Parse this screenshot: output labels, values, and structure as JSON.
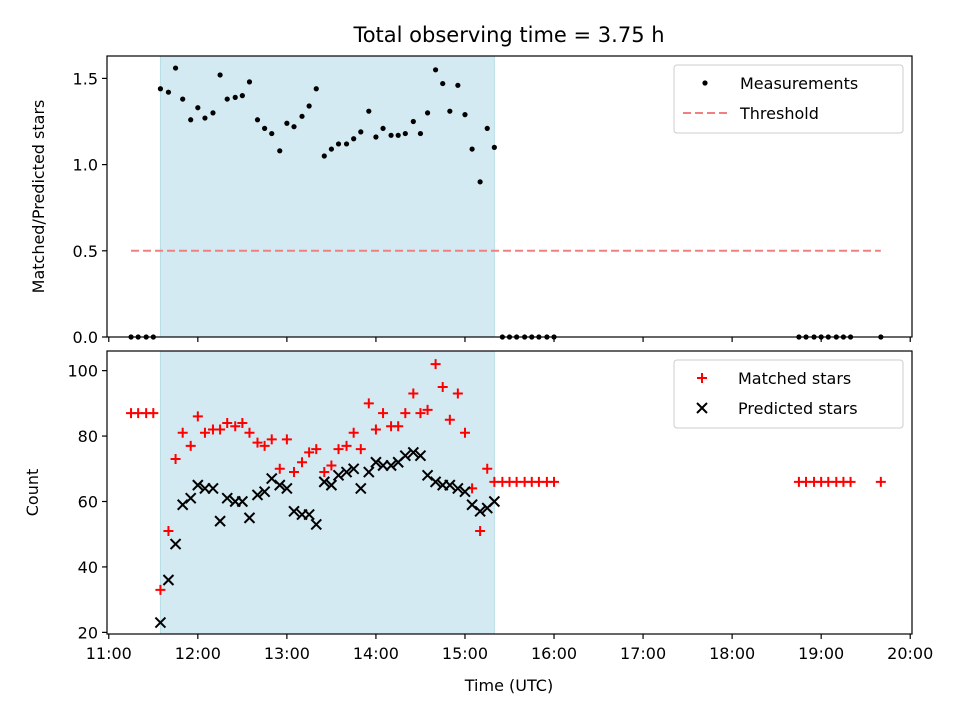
{
  "chart_data": {
    "title": "Total observing time = 3.75 h",
    "xlabel": "Time (UTC)",
    "xticks": [
      "11:00",
      "12:00",
      "13:00",
      "14:00",
      "15:00",
      "16:00",
      "17:00",
      "18:00",
      "19:00",
      "20:00"
    ],
    "xlim_hours": [
      10.98,
      20.02
    ],
    "observing_window_hours": [
      11.58,
      15.33
    ],
    "observing_window_color": "#d3eaf2",
    "panels": [
      {
        "type": "scatter",
        "ylabel": "Matched/Predicted stars",
        "ylim": [
          0,
          1.63
        ],
        "yticks": [
          "0.0",
          "0.5",
          "1.0",
          "1.5"
        ],
        "legend_position": "upper right",
        "threshold": {
          "name": "Threshold",
          "value": 0.5,
          "x_range": [
            11.25,
            19.67
          ],
          "color": "#f08080"
        },
        "series": [
          {
            "name": "Measurements",
            "color": "#000000",
            "x": [
              11.25,
              11.33,
              11.42,
              11.5,
              11.58,
              11.67,
              11.75,
              11.83,
              11.92,
              12.0,
              12.08,
              12.17,
              12.25,
              12.33,
              12.42,
              12.5,
              12.58,
              12.67,
              12.75,
              12.83,
              12.92,
              13.0,
              13.08,
              13.17,
              13.25,
              13.33,
              13.42,
              13.5,
              13.58,
              13.67,
              13.75,
              13.83,
              13.92,
              14.0,
              14.08,
              14.17,
              14.25,
              14.33,
              14.42,
              14.5,
              14.58,
              14.67,
              14.75,
              14.83,
              14.92,
              15.0,
              15.08,
              15.17,
              15.25,
              15.33,
              15.42,
              15.5,
              15.58,
              15.67,
              15.75,
              15.83,
              15.92,
              16.0,
              18.75,
              18.83,
              18.92,
              19.0,
              19.08,
              19.17,
              19.25,
              19.33,
              19.67
            ],
            "y": [
              0,
              0,
              0,
              0,
              1.44,
              1.42,
              1.56,
              1.38,
              1.26,
              1.33,
              1.27,
              1.3,
              1.52,
              1.38,
              1.39,
              1.4,
              1.48,
              1.26,
              1.21,
              1.18,
              1.08,
              1.24,
              1.22,
              1.28,
              1.34,
              1.44,
              1.05,
              1.09,
              1.12,
              1.12,
              1.15,
              1.19,
              1.31,
              1.16,
              1.21,
              1.17,
              1.17,
              1.18,
              1.25,
              1.18,
              1.3,
              1.55,
              1.47,
              1.31,
              1.46,
              1.29,
              1.09,
              0.9,
              1.21,
              1.1,
              0,
              0,
              0,
              0,
              0,
              0,
              0,
              0,
              0,
              0,
              0,
              0,
              0,
              0,
              0,
              0,
              0
            ]
          }
        ]
      },
      {
        "type": "scatter",
        "ylabel": "Count",
        "ylim": [
          19.5,
          106
        ],
        "yticks": [
          "20",
          "40",
          "60",
          "80",
          "100"
        ],
        "legend_position": "upper right",
        "series": [
          {
            "name": "Matched stars",
            "color": "#ff0000",
            "marker": "+",
            "x": [
              11.25,
              11.33,
              11.42,
              11.5,
              11.58,
              11.67,
              11.75,
              11.83,
              11.92,
              12.0,
              12.08,
              12.17,
              12.25,
              12.33,
              12.42,
              12.5,
              12.58,
              12.67,
              12.75,
              12.83,
              12.92,
              13.0,
              13.08,
              13.17,
              13.25,
              13.33,
              13.42,
              13.5,
              13.58,
              13.67,
              13.75,
              13.83,
              13.92,
              14.0,
              14.08,
              14.17,
              14.25,
              14.33,
              14.42,
              14.5,
              14.58,
              14.67,
              14.75,
              14.83,
              14.92,
              15.0,
              15.08,
              15.17,
              15.25,
              15.33,
              15.42,
              15.5,
              15.58,
              15.67,
              15.75,
              15.83,
              15.92,
              16.0,
              18.75,
              18.83,
              18.92,
              19.0,
              19.08,
              19.17,
              19.25,
              19.33,
              19.67
            ],
            "y": [
              87,
              87,
              87,
              87,
              33,
              51,
              73,
              81,
              77,
              86,
              81,
              82,
              82,
              84,
              83,
              84,
              81,
              78,
              77,
              79,
              70,
              79,
              69,
              72,
              75,
              76,
              69,
              71,
              76,
              77,
              81,
              76,
              90,
              82,
              87,
              83,
              83,
              87,
              93,
              87,
              88,
              102,
              95,
              85,
              93,
              81,
              64,
              51,
              70,
              66,
              66,
              66,
              66,
              66,
              66,
              66,
              66,
              66,
              66,
              66,
              66,
              66,
              66,
              66,
              66,
              66,
              66
            ]
          },
          {
            "name": "Predicted stars",
            "color": "#000000",
            "marker": "x",
            "x": [
              11.58,
              11.67,
              11.75,
              11.83,
              11.92,
              12.0,
              12.08,
              12.17,
              12.25,
              12.33,
              12.42,
              12.5,
              12.58,
              12.67,
              12.75,
              12.83,
              12.92,
              13.0,
              13.08,
              13.17,
              13.25,
              13.33,
              13.42,
              13.5,
              13.58,
              13.67,
              13.75,
              13.83,
              13.92,
              14.0,
              14.08,
              14.17,
              14.25,
              14.33,
              14.42,
              14.5,
              14.58,
              14.67,
              14.75,
              14.83,
              14.92,
              15.0,
              15.08,
              15.17,
              15.25,
              15.33
            ],
            "y": [
              23,
              36,
              47,
              59,
              61,
              65,
              64,
              64,
              54,
              61,
              60,
              60,
              55,
              62,
              63,
              67,
              65,
              64,
              57,
              56,
              56,
              53,
              66,
              65,
              68,
              69,
              70,
              64,
              69,
              72,
              71,
              71,
              72,
              74,
              75,
              74,
              68,
              66,
              65,
              65,
              64,
              63,
              59,
              57,
              58,
              60
            ]
          }
        ]
      }
    ]
  }
}
